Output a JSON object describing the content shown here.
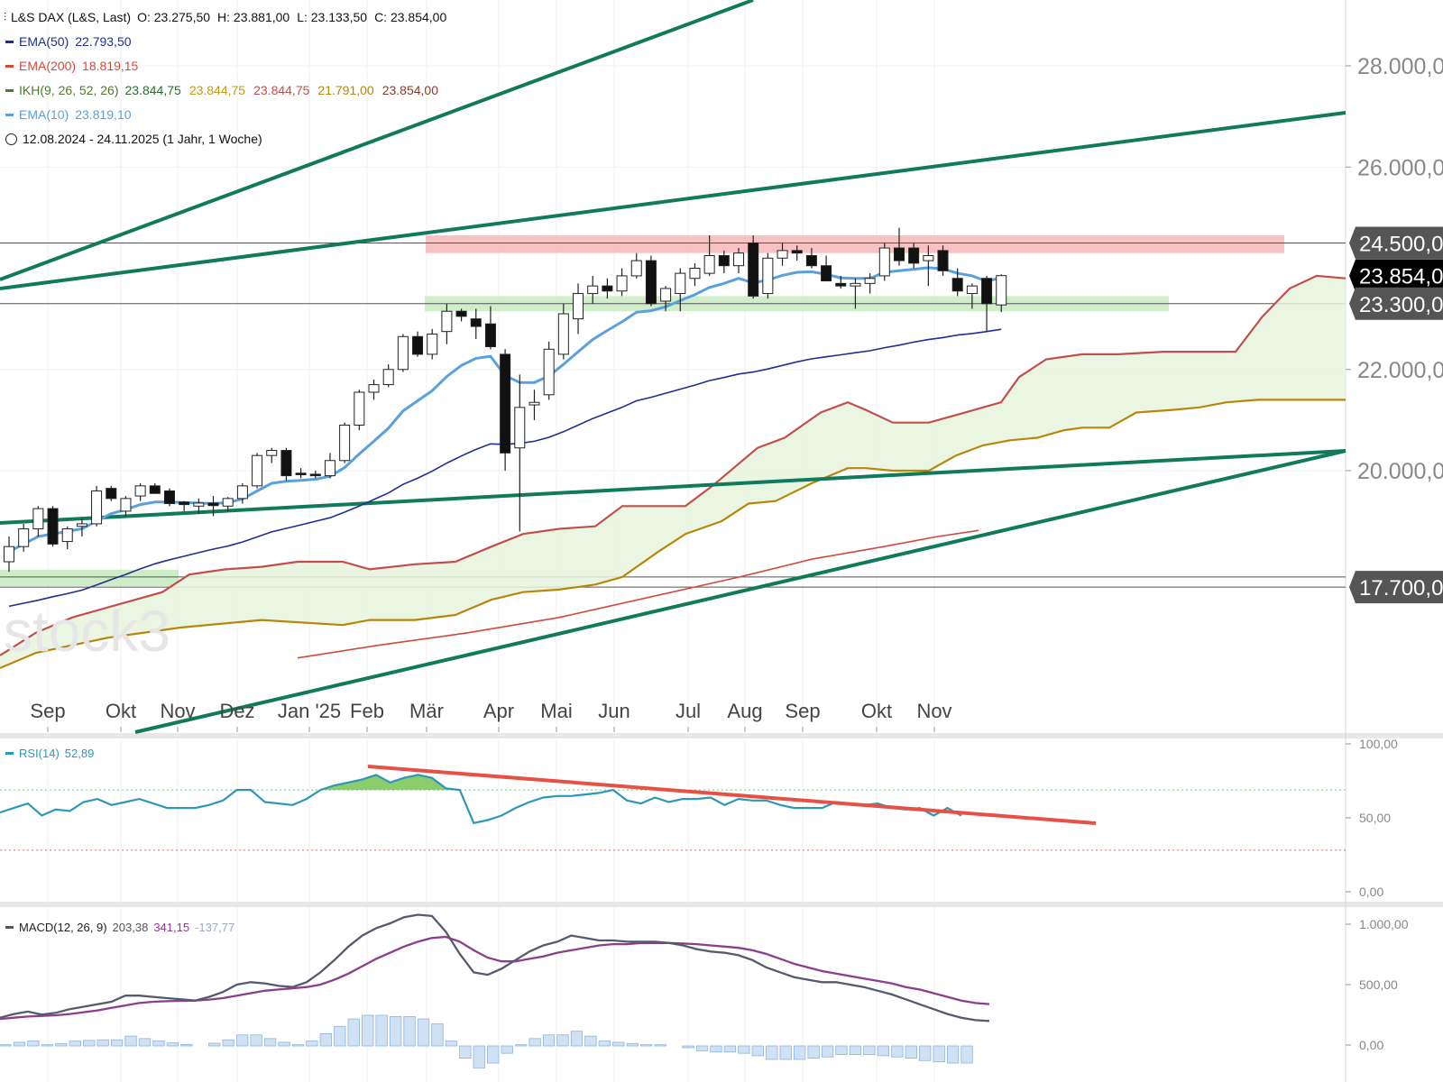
{
  "header": {
    "instrument": "L&S DAX (L&S, Last)",
    "ohlc": [
      {
        "label": "O:",
        "value": "23.275,50"
      },
      {
        "label": "H:",
        "value": "23.881,00"
      },
      {
        "label": "L:",
        "value": "23.133,50"
      },
      {
        "label": "C:",
        "value": "23.854,00"
      }
    ]
  },
  "legend": [
    {
      "name": "EMA(50)",
      "values": [
        "22.793,50"
      ],
      "color": "#1f2f8f"
    },
    {
      "name": "EMA(200)",
      "values": [
        "18.819,15"
      ],
      "color": "#d24a3c"
    },
    {
      "name": "IKH(9, 26, 52, 26)",
      "values": [
        "23.844,75",
        "23.844,75",
        "23.844,75",
        "21.791,00",
        "23.854,00"
      ],
      "color": "#4c7a2f",
      "value_colors": [
        "#2e6b2e",
        "#c49a18",
        "#c0504d",
        "#b8860b",
        "#8b3a2a"
      ]
    },
    {
      "name": "EMA(10)",
      "values": [
        "23.819,10"
      ],
      "color": "#5aa0de"
    }
  ],
  "period": "12.08.2024 - 24.11.2025  (1 Jahr, 1 Woche)",
  "watermark": "stock3",
  "price_axis": {
    "ticks": [
      "28.000,00",
      "26.000,00",
      "22.000,00",
      "20.000,00"
    ],
    "tick_values": [
      28000,
      26000,
      22000,
      20000
    ],
    "marked_levels": [
      {
        "label": "24.500,00",
        "value": 24500,
        "style": "gray"
      },
      {
        "label": "23.854,00",
        "value": 23854,
        "style": "black"
      },
      {
        "label": "23.300,00",
        "value": 23300,
        "style": "gray"
      },
      {
        "label": "17.900,00",
        "value": 17900,
        "style": "gray-hidden"
      },
      {
        "label": "17.700,00",
        "value": 17700,
        "style": "gray"
      }
    ]
  },
  "time_axis": [
    "Sep",
    "Okt",
    "Nov",
    "Dez",
    "Jan '25",
    "Feb",
    "Mär",
    "Apr",
    "Mai",
    "Jun",
    "Jul",
    "Aug",
    "Sep",
    "Okt",
    "Nov"
  ],
  "rsi": {
    "label": "RSI(14)",
    "value": "52,89",
    "color": "#2f97b6",
    "ticks": [
      "100,00",
      "50,00",
      "0,00"
    ]
  },
  "macd": {
    "label": "MACD(12, 26, 9)",
    "values": [
      "203,38",
      "341,15",
      "-137,77"
    ],
    "colors": [
      "#555",
      "#8c3e8c",
      "#9ab"
    ],
    "ticks": [
      "1.000,00",
      "500,00",
      "0,00"
    ]
  },
  "chart_data": {
    "type": "candlestick",
    "title": "L&S DAX (L&S, Last)",
    "candles": [
      {
        "o": 18200,
        "h": 18700,
        "l": 18000,
        "c": 18500
      },
      {
        "o": 18500,
        "h": 18950,
        "l": 18400,
        "c": 18850
      },
      {
        "o": 18850,
        "h": 19300,
        "l": 18700,
        "c": 19250
      },
      {
        "o": 19250,
        "h": 19300,
        "l": 18500,
        "c": 18550
      },
      {
        "o": 18600,
        "h": 18900,
        "l": 18450,
        "c": 18850
      },
      {
        "o": 18900,
        "h": 19050,
        "l": 18700,
        "c": 18950
      },
      {
        "o": 18950,
        "h": 19700,
        "l": 18900,
        "c": 19600
      },
      {
        "o": 19650,
        "h": 19700,
        "l": 19400,
        "c": 19450
      },
      {
        "o": 19200,
        "h": 19500,
        "l": 19100,
        "c": 19450
      },
      {
        "o": 19500,
        "h": 19750,
        "l": 19400,
        "c": 19700
      },
      {
        "o": 19700,
        "h": 19750,
        "l": 19550,
        "c": 19550
      },
      {
        "o": 19600,
        "h": 19650,
        "l": 19300,
        "c": 19350
      },
      {
        "o": 19380,
        "h": 19400,
        "l": 19200,
        "c": 19330
      },
      {
        "o": 19300,
        "h": 19450,
        "l": 19150,
        "c": 19360
      },
      {
        "o": 19360,
        "h": 19500,
        "l": 19100,
        "c": 19310
      },
      {
        "o": 19300,
        "h": 19480,
        "l": 19200,
        "c": 19450
      },
      {
        "o": 19450,
        "h": 19750,
        "l": 19350,
        "c": 19700
      },
      {
        "o": 19700,
        "h": 20350,
        "l": 19650,
        "c": 20300
      },
      {
        "o": 20300,
        "h": 20450,
        "l": 20150,
        "c": 20400
      },
      {
        "o": 20400,
        "h": 20450,
        "l": 19800,
        "c": 19900
      },
      {
        "o": 19950,
        "h": 20050,
        "l": 19850,
        "c": 19920
      },
      {
        "o": 19930,
        "h": 20000,
        "l": 19850,
        "c": 19900
      },
      {
        "o": 19900,
        "h": 20350,
        "l": 19850,
        "c": 20200
      },
      {
        "o": 20200,
        "h": 20950,
        "l": 20150,
        "c": 20900
      },
      {
        "o": 20900,
        "h": 21600,
        "l": 20800,
        "c": 21550
      },
      {
        "o": 21550,
        "h": 21800,
        "l": 21400,
        "c": 21700
      },
      {
        "o": 21700,
        "h": 22100,
        "l": 21650,
        "c": 22000
      },
      {
        "o": 22000,
        "h": 22700,
        "l": 21950,
        "c": 22650
      },
      {
        "o": 22650,
        "h": 22750,
        "l": 22250,
        "c": 22300
      },
      {
        "o": 22300,
        "h": 22800,
        "l": 22200,
        "c": 22700
      },
      {
        "o": 22750,
        "h": 23300,
        "l": 22500,
        "c": 23150
      },
      {
        "o": 23150,
        "h": 23200,
        "l": 22950,
        "c": 23050
      },
      {
        "o": 23000,
        "h": 23200,
        "l": 22600,
        "c": 22850
      },
      {
        "o": 22900,
        "h": 23250,
        "l": 22400,
        "c": 22450
      },
      {
        "o": 22300,
        "h": 22400,
        "l": 20000,
        "c": 20350
      },
      {
        "o": 20450,
        "h": 21900,
        "l": 18800,
        "c": 21250
      },
      {
        "o": 21300,
        "h": 21600,
        "l": 21000,
        "c": 21350
      },
      {
        "o": 21500,
        "h": 22550,
        "l": 21400,
        "c": 22400
      },
      {
        "o": 22300,
        "h": 23300,
        "l": 22200,
        "c": 23100
      },
      {
        "o": 23000,
        "h": 23700,
        "l": 22700,
        "c": 23500
      },
      {
        "o": 23500,
        "h": 23850,
        "l": 23300,
        "c": 23650
      },
      {
        "o": 23650,
        "h": 23800,
        "l": 23400,
        "c": 23550
      },
      {
        "o": 23550,
        "h": 24000,
        "l": 23450,
        "c": 23850
      },
      {
        "o": 23850,
        "h": 24300,
        "l": 23800,
        "c": 24150
      },
      {
        "o": 24150,
        "h": 24250,
        "l": 23250,
        "c": 23300
      },
      {
        "o": 23350,
        "h": 23650,
        "l": 23150,
        "c": 23600
      },
      {
        "o": 23500,
        "h": 24000,
        "l": 23150,
        "c": 23900
      },
      {
        "o": 23800,
        "h": 24100,
        "l": 23650,
        "c": 24000
      },
      {
        "o": 23900,
        "h": 24650,
        "l": 23850,
        "c": 24250
      },
      {
        "o": 24250,
        "h": 24350,
        "l": 23900,
        "c": 24050
      },
      {
        "o": 24050,
        "h": 24400,
        "l": 23900,
        "c": 24300
      },
      {
        "o": 24500,
        "h": 24650,
        "l": 23400,
        "c": 23450
      },
      {
        "o": 23500,
        "h": 24300,
        "l": 23400,
        "c": 24200
      },
      {
        "o": 24200,
        "h": 24500,
        "l": 24050,
        "c": 24350
      },
      {
        "o": 24350,
        "h": 24450,
        "l": 24150,
        "c": 24300
      },
      {
        "o": 24250,
        "h": 24400,
        "l": 24000,
        "c": 24050
      },
      {
        "o": 24050,
        "h": 24250,
        "l": 23750,
        "c": 23750
      },
      {
        "o": 23700,
        "h": 23850,
        "l": 23600,
        "c": 23650
      },
      {
        "o": 23650,
        "h": 23800,
        "l": 23200,
        "c": 23700
      },
      {
        "o": 23700,
        "h": 23900,
        "l": 23500,
        "c": 23800
      },
      {
        "o": 23850,
        "h": 24500,
        "l": 23750,
        "c": 24400
      },
      {
        "o": 24400,
        "h": 24800,
        "l": 24050,
        "c": 24150
      },
      {
        "o": 24400,
        "h": 24500,
        "l": 24000,
        "c": 24100
      },
      {
        "o": 24150,
        "h": 24450,
        "l": 23650,
        "c": 24250
      },
      {
        "o": 24350,
        "h": 24450,
        "l": 23850,
        "c": 23950
      },
      {
        "o": 23800,
        "h": 24000,
        "l": 23450,
        "c": 23550
      },
      {
        "o": 23500,
        "h": 23700,
        "l": 23200,
        "c": 23650
      },
      {
        "o": 23800,
        "h": 23850,
        "l": 22750,
        "c": 23300
      },
      {
        "o": 23275.5,
        "h": 23881,
        "l": 23133.5,
        "c": 23854
      }
    ],
    "ema10": [
      18400,
      18550,
      18700,
      18750,
      18800,
      18850,
      19000,
      19150,
      19230,
      19330,
      19380,
      19380,
      19370,
      19360,
      19350,
      19370,
      19440,
      19600,
      19750,
      19790,
      19810,
      19830,
      19890,
      20060,
      20330,
      20580,
      20840,
      21180,
      21380,
      21580,
      21860,
      22080,
      22220,
      22260,
      21880,
      21740,
      21740,
      21870,
      22100,
      22350,
      22590,
      22770,
      22940,
      23130,
      23160,
      23240,
      23360,
      23480,
      23620,
      23700,
      23800,
      23710,
      23770,
      23860,
      23920,
      23930,
      23880,
      23810,
      23800,
      23800,
      23920,
      23950,
      23980,
      24010,
      23990,
      23900,
      23850,
      23740,
      23819
    ],
    "ema50": [
      17320,
      17380,
      17440,
      17510,
      17570,
      17640,
      17740,
      17850,
      17950,
      18060,
      18160,
      18240,
      18310,
      18380,
      18450,
      18510,
      18590,
      18690,
      18790,
      18860,
      18930,
      19000,
      19070,
      19180,
      19300,
      19430,
      19560,
      19730,
      19850,
      19990,
      20150,
      20290,
      20420,
      20530,
      20520,
      20540,
      20580,
      20660,
      20770,
      20900,
      21030,
      21140,
      21250,
      21380,
      21450,
      21530,
      21610,
      21690,
      21780,
      21840,
      21910,
      21950,
      22010,
      22080,
      22150,
      22210,
      22250,
      22290,
      22330,
      22370,
      22430,
      22480,
      22540,
      22590,
      22630,
      22680,
      22710,
      22750,
      22793.5
    ],
    "ema200_ref": 18819.15,
    "ichimoku_ref": {
      "tenkan": 23844.75,
      "kijun": 23844.75,
      "span_a": 23844.75,
      "span_b": 21791.0,
      "chikou": 23854.0
    },
    "rsi14_last": 52.89,
    "macd_last": {
      "macd": 203.38,
      "signal": 341.15,
      "histogram": -137.77
    },
    "ylim": [
      16400,
      28800
    ],
    "resistance_zone": [
      24300,
      24650
    ],
    "support_zone": [
      23150,
      23450
    ]
  }
}
